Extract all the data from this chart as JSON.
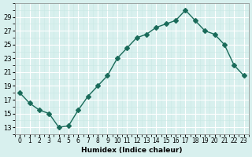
{
  "x": [
    0,
    1,
    2,
    3,
    4,
    5,
    6,
    7,
    8,
    9,
    10,
    11,
    12,
    13,
    14,
    15,
    16,
    17,
    18,
    19,
    20,
    21,
    22,
    23
  ],
  "y": [
    18.0,
    16.5,
    15.5,
    15.0,
    13.0,
    13.2,
    15.5,
    17.5,
    19.0,
    20.5,
    23.0,
    24.5,
    26.0,
    26.5,
    27.5,
    28.0,
    28.5,
    30.0,
    28.5,
    27.0,
    26.5,
    25.0,
    22.0,
    20.5
  ],
  "xlabel": "Humidex (Indice chaleur)",
  "ylabel": "",
  "xlim": [
    -0.5,
    23.5
  ],
  "ylim": [
    12,
    31
  ],
  "yticks": [
    13,
    15,
    17,
    19,
    21,
    23,
    25,
    27,
    29
  ],
  "xtick_labels": [
    "0",
    "1",
    "2",
    "3",
    "4",
    "5",
    "6",
    "7",
    "8",
    "9",
    "10",
    "11",
    "12",
    "13",
    "14",
    "15",
    "16",
    "17",
    "18",
    "19",
    "20",
    "21",
    "22",
    "23"
  ],
  "line_color": "#1a6b5a",
  "marker": "D",
  "marker_size": 3,
  "bg_color": "#d8f0ee",
  "grid_color": "#ffffff",
  "grid_minor_color": "#c8e8e4"
}
